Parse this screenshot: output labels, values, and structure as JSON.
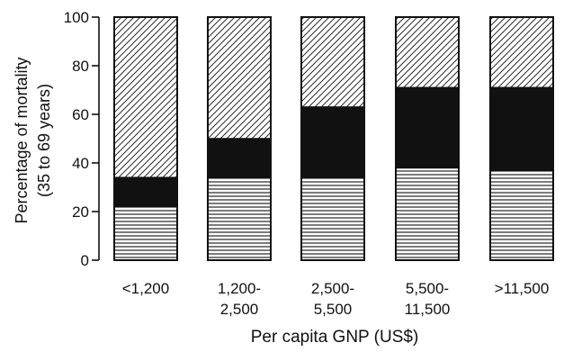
{
  "chart_data": {
    "type": "bar",
    "stacked": true,
    "normalized": true,
    "categories": [
      [
        "<1,200"
      ],
      [
        "1,200-",
        "2,500"
      ],
      [
        "2,500-",
        "5,500"
      ],
      [
        "5,500-",
        "11,500"
      ],
      [
        ">11,500"
      ]
    ],
    "series": [
      {
        "pattern": "horizontal-lines",
        "values": [
          22,
          34,
          34,
          38,
          37
        ]
      },
      {
        "pattern": "solid-black",
        "values": [
          12,
          16,
          29,
          33,
          34
        ]
      },
      {
        "pattern": "diagonal-hatch",
        "values": [
          66,
          50,
          37,
          29,
          29
        ]
      }
    ],
    "xlabel": "Per capita GNP (US$)",
    "ylabel": [
      "Percentage of mortality",
      "(35 to 69 years)"
    ],
    "ylim": [
      0,
      100
    ],
    "yticks": [
      0,
      20,
      40,
      60,
      80,
      100
    ],
    "grid": false,
    "legend": "none",
    "colors": {
      "ink": "#111111",
      "background": "#ffffff"
    }
  }
}
